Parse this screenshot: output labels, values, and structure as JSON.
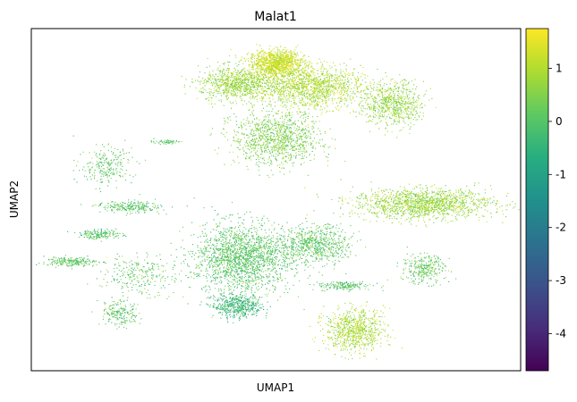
{
  "chart_data": {
    "type": "scatter",
    "title": "Malat1",
    "xlabel": "UMAP1",
    "ylabel": "UMAP2",
    "colormap": "viridis",
    "colorbar": {
      "label": "",
      "range": [
        -4.7,
        1.75
      ],
      "ticks": [
        1,
        0,
        -1,
        -2,
        -3,
        -4
      ],
      "tick_labels": [
        "1",
        "0",
        "-1",
        "-2",
        "-3",
        "-4"
      ]
    },
    "xticks": [],
    "yticks": [],
    "grid": false,
    "clusters": [
      {
        "id": "top-crest",
        "cx": 0.5,
        "cy": 0.9,
        "rx": 0.05,
        "ry": 0.035,
        "n": 1200,
        "value_mean": 1.25,
        "value_sd": 0.3
      },
      {
        "id": "top-mass-right",
        "cx": 0.57,
        "cy": 0.83,
        "rx": 0.1,
        "ry": 0.055,
        "n": 1400,
        "value_mean": 0.95,
        "value_sd": 0.35
      },
      {
        "id": "top-mass-left",
        "cx": 0.42,
        "cy": 0.84,
        "rx": 0.07,
        "ry": 0.045,
        "n": 900,
        "value_mean": 0.75,
        "value_sd": 0.35
      },
      {
        "id": "top-right-lobe",
        "cx": 0.74,
        "cy": 0.78,
        "rx": 0.055,
        "ry": 0.06,
        "n": 700,
        "value_mean": 0.7,
        "value_sd": 0.35
      },
      {
        "id": "top-stem",
        "cx": 0.5,
        "cy": 0.68,
        "rx": 0.08,
        "ry": 0.07,
        "n": 1100,
        "value_mean": 0.45,
        "value_sd": 0.35
      },
      {
        "id": "right-arm",
        "cx": 0.8,
        "cy": 0.49,
        "rx": 0.13,
        "ry": 0.04,
        "n": 1500,
        "value_mean": 0.75,
        "value_sd": 0.35
      },
      {
        "id": "center-left-large",
        "cx": 0.43,
        "cy": 0.33,
        "rx": 0.09,
        "ry": 0.09,
        "n": 1900,
        "value_mean": 0.05,
        "value_sd": 0.35
      },
      {
        "id": "center-right",
        "cx": 0.58,
        "cy": 0.37,
        "rx": 0.065,
        "ry": 0.05,
        "n": 700,
        "value_mean": 0.1,
        "value_sd": 0.35
      },
      {
        "id": "center-lower",
        "cx": 0.42,
        "cy": 0.19,
        "rx": 0.045,
        "ry": 0.03,
        "n": 500,
        "value_mean": -0.45,
        "value_sd": 0.45
      },
      {
        "id": "bottom-right-blob",
        "cx": 0.66,
        "cy": 0.12,
        "rx": 0.055,
        "ry": 0.055,
        "n": 800,
        "value_mean": 0.9,
        "value_sd": 0.35
      },
      {
        "id": "right-small",
        "cx": 0.8,
        "cy": 0.3,
        "rx": 0.04,
        "ry": 0.04,
        "n": 300,
        "value_mean": 0.15,
        "value_sd": 0.45
      },
      {
        "id": "streak-right",
        "cx": 0.64,
        "cy": 0.25,
        "rx": 0.05,
        "ry": 0.012,
        "n": 180,
        "value_mean": 0.0,
        "value_sd": 0.4
      },
      {
        "id": "left-band-1",
        "cx": 0.2,
        "cy": 0.48,
        "rx": 0.06,
        "ry": 0.015,
        "n": 240,
        "value_mean": 0.0,
        "value_sd": 0.35
      },
      {
        "id": "left-band-2",
        "cx": 0.14,
        "cy": 0.4,
        "rx": 0.04,
        "ry": 0.012,
        "n": 180,
        "value_mean": 0.0,
        "value_sd": 0.35
      },
      {
        "id": "left-band-3",
        "cx": 0.08,
        "cy": 0.32,
        "rx": 0.05,
        "ry": 0.013,
        "n": 220,
        "value_mean": 0.05,
        "value_sd": 0.35
      },
      {
        "id": "left-streaks",
        "cx": 0.15,
        "cy": 0.6,
        "rx": 0.05,
        "ry": 0.05,
        "n": 250,
        "value_mean": 0.1,
        "value_sd": 0.35
      },
      {
        "id": "left-fringe",
        "cx": 0.22,
        "cy": 0.28,
        "rx": 0.07,
        "ry": 0.05,
        "n": 260,
        "value_mean": 0.15,
        "value_sd": 0.35
      },
      {
        "id": "bottom-left-small",
        "cx": 0.18,
        "cy": 0.17,
        "rx": 0.035,
        "ry": 0.035,
        "n": 200,
        "value_mean": 0.15,
        "value_sd": 0.45
      },
      {
        "id": "top-left-line",
        "cx": 0.27,
        "cy": 0.67,
        "rx": 0.03,
        "ry": 0.006,
        "n": 60,
        "value_mean": 0.1,
        "value_sd": 0.3
      }
    ]
  }
}
